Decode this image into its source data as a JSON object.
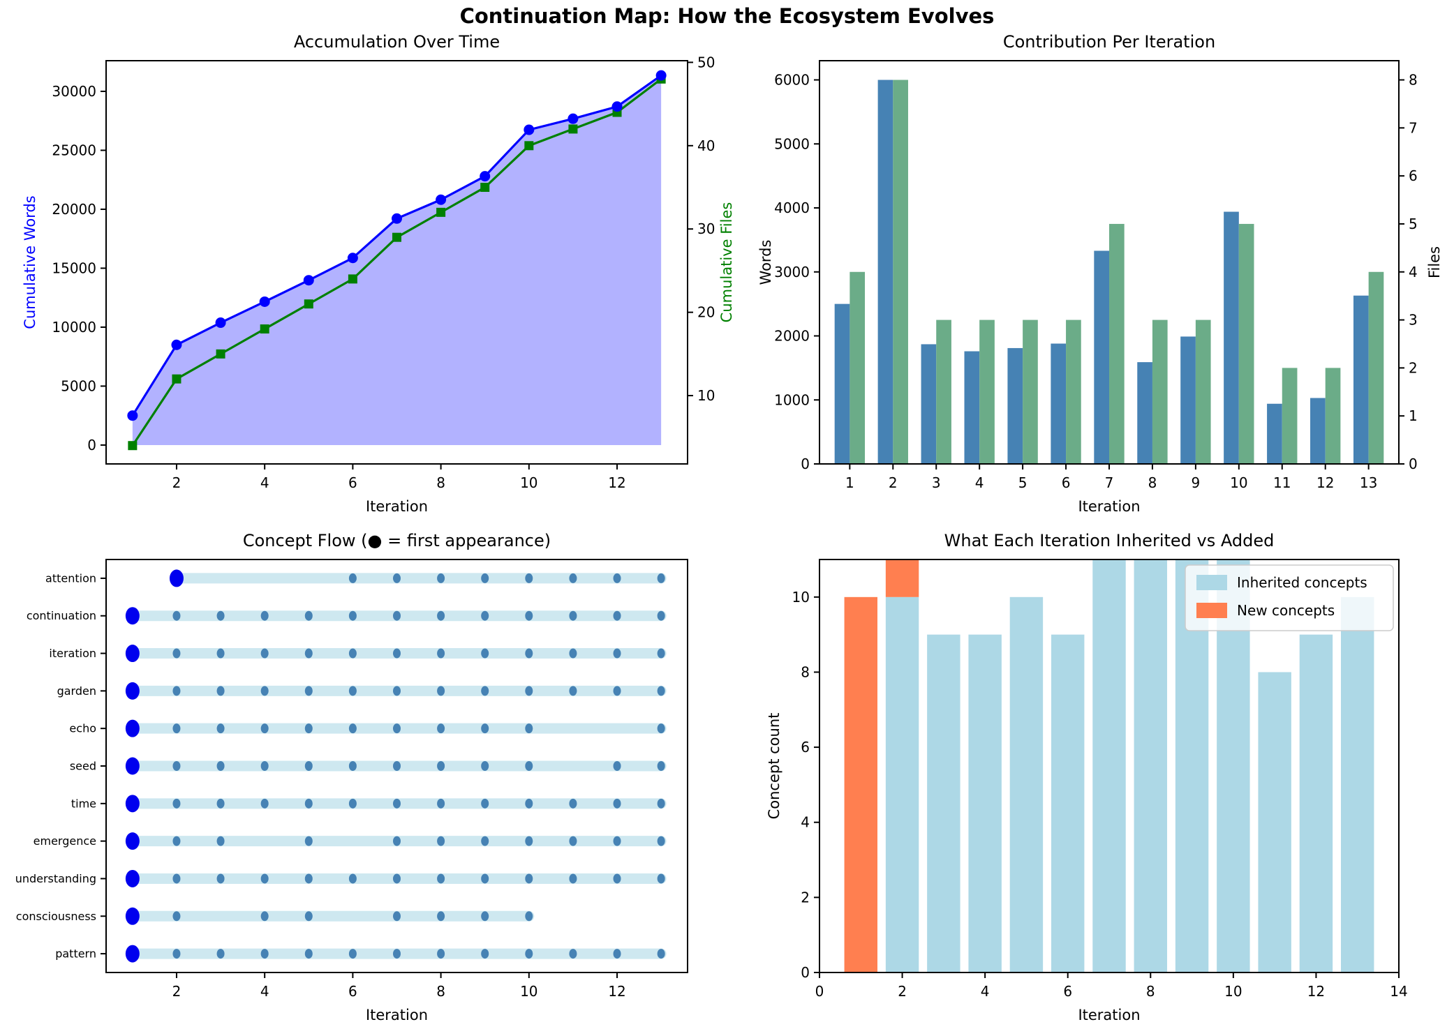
{
  "figure_title": "Continuation Map: How the Ecosystem Evolves",
  "chart_data": [
    {
      "id": "accumulation",
      "type": "line",
      "title": "Accumulation Over Time",
      "xlabel": "Iteration",
      "ylabel_left": "Cumulative Words",
      "ylabel_right": "Cumulative Files",
      "x": [
        1,
        2,
        3,
        4,
        5,
        6,
        7,
        8,
        9,
        10,
        11,
        12,
        13
      ],
      "series": [
        {
          "name": "Cumulative Words",
          "axis": "left",
          "color": "#0000FF",
          "marker": "circle",
          "area_fill": "rgba(0,0,255,0.3)",
          "values": [
            2500,
            8500,
            10380,
            12160,
            13980,
            15870,
            19210,
            20810,
            22800,
            26740,
            27680,
            28710,
            31350
          ]
        },
        {
          "name": "Cumulative Files",
          "axis": "right",
          "color": "#008000",
          "marker": "square",
          "values": [
            4,
            12,
            15,
            18,
            21,
            24,
            29,
            32,
            35,
            40,
            42,
            44,
            48
          ]
        }
      ],
      "x_ticks": [
        2,
        4,
        6,
        8,
        10,
        12
      ],
      "left_ticks": [
        0,
        5000,
        10000,
        15000,
        20000,
        25000,
        30000
      ],
      "right_ticks": [
        10,
        20,
        30,
        40,
        50
      ],
      "xlim": [
        0.4,
        13.6
      ],
      "ylim_left": [
        -1600,
        32600
      ],
      "ylim_right": [
        1.8,
        50.2
      ],
      "grid": false,
      "label_color_left": "#0000FF",
      "label_color_right": "#008000"
    },
    {
      "id": "contribution",
      "type": "bar",
      "title": "Contribution Per Iteration",
      "xlabel": "Iteration",
      "ylabel_left": "Words",
      "ylabel_right": "Files",
      "categories": [
        1,
        2,
        3,
        4,
        5,
        6,
        7,
        8,
        9,
        10,
        11,
        12,
        13
      ],
      "series": [
        {
          "name": "Words",
          "axis": "left",
          "color": "#4682B4",
          "values": [
            2500,
            6000,
            1870,
            1760,
            1810,
            1880,
            3330,
            1590,
            1990,
            3940,
            940,
            1030,
            2630
          ]
        },
        {
          "name": "Files",
          "axis": "right",
          "color": "#6BAC88",
          "values": [
            4,
            8,
            3,
            3,
            3,
            3,
            5,
            3,
            3,
            5,
            2,
            2,
            4
          ]
        }
      ],
      "left_ticks": [
        0,
        1000,
        2000,
        3000,
        4000,
        5000,
        6000
      ],
      "right_ticks": [
        0,
        1,
        2,
        3,
        4,
        5,
        6,
        7,
        8
      ],
      "xlim": [
        0.3,
        13.7
      ],
      "ylim_left": [
        0,
        6300
      ],
      "ylim_right": [
        0,
        8.4
      ],
      "bar_width": 0.35,
      "grid": false
    },
    {
      "id": "concept-flow",
      "type": "scatter",
      "title": "Concept Flow (● = first appearance)",
      "xlabel": "Iteration",
      "x_ticks": [
        2,
        4,
        6,
        8,
        10,
        12
      ],
      "xlim": [
        0.4,
        13.6
      ],
      "band_color": "#ADD8E6",
      "band_opacity": 0.6,
      "dot_color": "#4682B4",
      "first_dot_color": "#0000EE",
      "concepts": [
        {
          "label": "attention",
          "first": 2,
          "iterations": [
            2,
            6,
            7,
            8,
            9,
            10,
            11,
            12,
            13
          ]
        },
        {
          "label": "continuation",
          "first": 1,
          "iterations": [
            1,
            2,
            3,
            4,
            5,
            6,
            7,
            8,
            9,
            10,
            11,
            12,
            13
          ]
        },
        {
          "label": "iteration",
          "first": 1,
          "iterations": [
            1,
            2,
            3,
            4,
            5,
            6,
            7,
            8,
            9,
            10,
            11,
            12,
            13
          ]
        },
        {
          "label": "garden",
          "first": 1,
          "iterations": [
            1,
            2,
            3,
            4,
            5,
            6,
            7,
            8,
            9,
            10,
            11,
            12,
            13
          ]
        },
        {
          "label": "echo",
          "first": 1,
          "iterations": [
            1,
            2,
            3,
            4,
            5,
            6,
            7,
            8,
            9,
            10,
            13
          ]
        },
        {
          "label": "seed",
          "first": 1,
          "iterations": [
            1,
            2,
            3,
            4,
            5,
            6,
            7,
            8,
            9,
            10,
            12,
            13
          ]
        },
        {
          "label": "time",
          "first": 1,
          "iterations": [
            1,
            2,
            3,
            4,
            5,
            6,
            7,
            8,
            9,
            10,
            11,
            12,
            13
          ]
        },
        {
          "label": "emergence",
          "first": 1,
          "iterations": [
            1,
            2,
            3,
            5,
            7,
            8,
            9,
            10,
            11,
            12,
            13
          ]
        },
        {
          "label": "understanding",
          "first": 1,
          "iterations": [
            1,
            2,
            3,
            4,
            5,
            6,
            7,
            8,
            9,
            10,
            11,
            12,
            13
          ]
        },
        {
          "label": "consciousness",
          "first": 1,
          "iterations": [
            1,
            2,
            4,
            5,
            7,
            8,
            9,
            10
          ]
        },
        {
          "label": "pattern",
          "first": 1,
          "iterations": [
            1,
            2,
            3,
            4,
            5,
            6,
            7,
            8,
            9,
            10,
            11,
            12,
            13
          ]
        }
      ],
      "grid": false
    },
    {
      "id": "inherited-added",
      "type": "bar-stacked",
      "title": "What Each Iteration Inherited vs Added",
      "xlabel": "Iteration",
      "ylabel": "Concept count",
      "categories": [
        1,
        2,
        3,
        4,
        5,
        6,
        7,
        8,
        9,
        10,
        11,
        12,
        13
      ],
      "series": [
        {
          "name": "Inherited concepts",
          "color": "#ADD8E6",
          "values": [
            0,
            10,
            9,
            9,
            10,
            9,
            11,
            11,
            11,
            11,
            8,
            9,
            10
          ]
        },
        {
          "name": "New concepts",
          "color": "#FF7F50",
          "values": [
            10,
            1,
            0,
            0,
            0,
            0,
            0,
            0,
            0,
            0,
            0,
            0,
            0
          ]
        }
      ],
      "x_ticks": [
        0,
        2,
        4,
        6,
        8,
        10,
        12,
        14
      ],
      "y_ticks": [
        0,
        2,
        4,
        6,
        8,
        10
      ],
      "xlim": [
        0,
        14
      ],
      "ylim": [
        0,
        11
      ],
      "bar_width": 0.8,
      "legend": {
        "position": "upper right",
        "labels": [
          "Inherited concepts",
          "New concepts"
        ]
      },
      "grid": false
    }
  ]
}
